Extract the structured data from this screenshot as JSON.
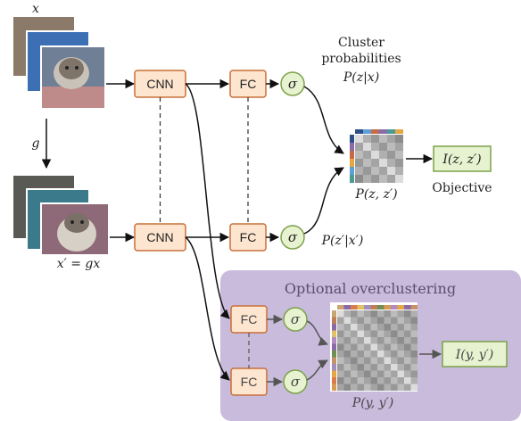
{
  "input_top_label": "x",
  "transform_label": "g",
  "input_bottom_label": "x′ = gx",
  "cnn_label": "CNN",
  "fc_label": "FC",
  "sigma_label": "σ",
  "cluster_prob_line1": "Cluster",
  "cluster_prob_line2": "probabilities",
  "cluster_prob_math": "P(z|x)",
  "bottom_prob_math": "P(z′|x′)",
  "joint_label": "P(z, z′)",
  "objective_formula": "I(z, z′)",
  "objective_label": "Objective",
  "optional_title": "Optional overclustering",
  "over_joint_label": "P(y, y′)",
  "over_objective_formula": "I(y, y′)",
  "colors": {
    "orange_fill": "#fde5cf",
    "orange_stroke": "#c8703a",
    "green_fill": "#e6f2d0",
    "green_stroke": "#7da24a",
    "optional_bg": "#c8bbdc",
    "matrix_head_top": [
      "#2e4f86",
      "#5f9fd7",
      "#c56a48",
      "#8a6aa8",
      "#4a9b94",
      "#e6a641"
    ],
    "matrix_head_left": [
      "#2e4f86",
      "#8a6aa8",
      "#c56a48",
      "#e6a641",
      "#5f9fd7",
      "#4a9b94"
    ],
    "over_head": [
      "#c9a574",
      "#8a6aa8",
      "#d97c4e",
      "#e3c063",
      "#a08fbe",
      "#c27d57",
      "#6f8f54",
      "#d99a55",
      "#b18bc2",
      "#e6a641",
      "#8a6aa8",
      "#c7926a"
    ]
  }
}
